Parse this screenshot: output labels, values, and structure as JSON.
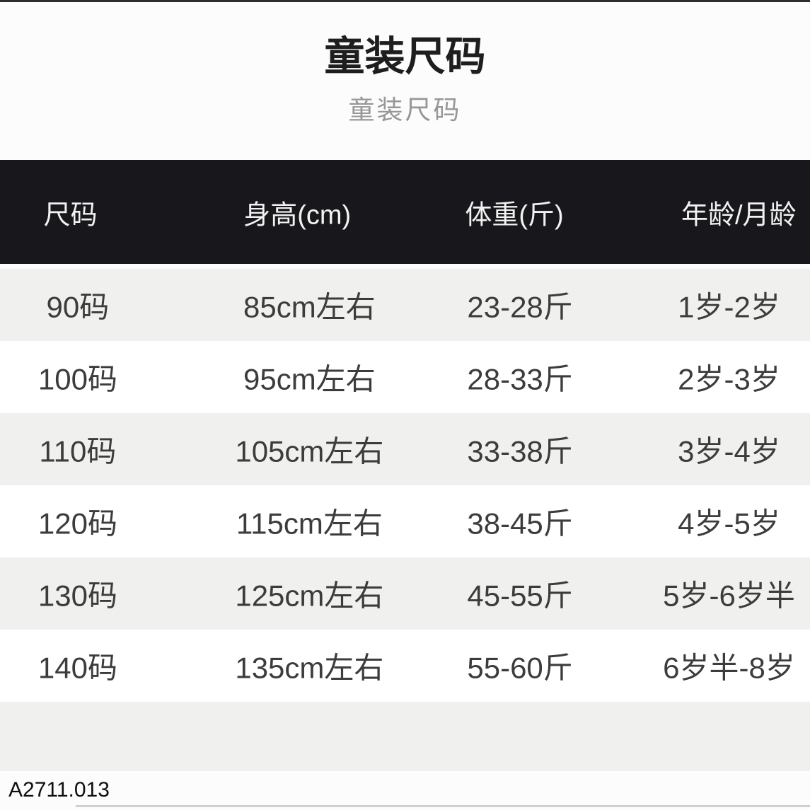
{
  "page": {
    "title": "童装尺码",
    "subtitle": "童装尺码",
    "footer_code": "A2711.013"
  },
  "table": {
    "columns": [
      "尺码",
      "身高(cm)",
      "体重(斤)",
      "年龄/月龄"
    ],
    "rows": [
      [
        "90码",
        "85cm左右",
        "23-28斤",
        "1岁-2岁"
      ],
      [
        "100码",
        "95cm左右",
        "28-33斤",
        "2岁-3岁"
      ],
      [
        "110码",
        "105cm左右",
        "33-38斤",
        "3岁-4岁"
      ],
      [
        "120码",
        "115cm左右",
        "38-45斤",
        "4岁-5岁"
      ],
      [
        "130码",
        "125cm左右",
        "45-55斤",
        "5岁-6岁半"
      ],
      [
        "140码",
        "135cm左右",
        "55-60斤",
        "6岁半-8岁"
      ]
    ]
  },
  "colors": {
    "header_bg": "#17171c",
    "header_text": "#f2f2f2",
    "row_bg": "#ffffff",
    "row_alt_bg": "#f0f0ef",
    "cell_text": "#3c3c3c",
    "title_text": "#1e1e1e",
    "subtitle_text": "#979797",
    "top_strip": "#2d2d2d",
    "divider": "#cfcfcf"
  }
}
